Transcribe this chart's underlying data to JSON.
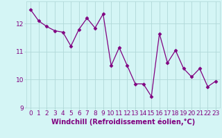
{
  "x": [
    0,
    1,
    2,
    3,
    4,
    5,
    6,
    7,
    8,
    9,
    10,
    11,
    12,
    13,
    14,
    15,
    16,
    17,
    18,
    19,
    20,
    21,
    22,
    23
  ],
  "y": [
    12.5,
    12.1,
    11.9,
    11.75,
    11.7,
    11.2,
    11.8,
    12.2,
    11.85,
    12.35,
    10.5,
    11.15,
    10.5,
    9.85,
    9.85,
    9.4,
    11.65,
    10.6,
    11.05,
    10.4,
    10.1,
    10.4,
    9.75,
    9.95
  ],
  "line_color": "#800080",
  "marker": "D",
  "marker_size": 2.5,
  "bg_color": "#d4f5f5",
  "grid_color": "#b0d8d8",
  "xlabel": "Windchill (Refroidissement éolien,°C)",
  "ylim": [
    9.0,
    12.8
  ],
  "xlim": [
    -0.5,
    23.5
  ],
  "yticks": [
    9,
    10,
    11,
    12
  ],
  "xticks": [
    0,
    1,
    2,
    3,
    4,
    5,
    6,
    7,
    8,
    9,
    10,
    11,
    12,
    13,
    14,
    15,
    16,
    17,
    18,
    19,
    20,
    21,
    22,
    23
  ],
  "tick_fontsize": 6.5,
  "xlabel_fontsize": 7.0
}
